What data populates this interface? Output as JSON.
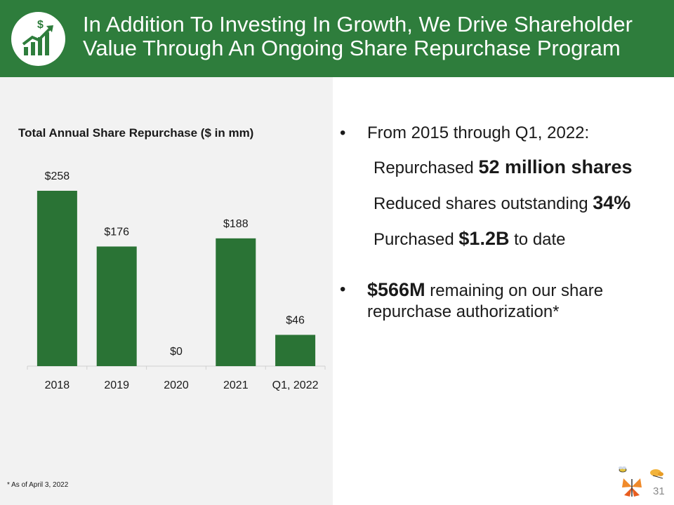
{
  "header": {
    "title_line1": "In Addition To Investing In Growth, We Drive Shareholder",
    "title_line2": "Value Through An Ongoing Share Repurchase Program",
    "logo_icon": "growth-chart-dollar-icon",
    "bg_color": "#2e7d3c"
  },
  "chart_data": {
    "type": "bar",
    "title": "Total Annual Share Repurchase ($ in mm)",
    "categories": [
      "2018",
      "2019",
      "2020",
      "2021",
      "Q1, 2022"
    ],
    "values": [
      258,
      176,
      0,
      188,
      46
    ],
    "data_labels": [
      "$258",
      "$176",
      "$0",
      "$188",
      "$46"
    ],
    "xlabel": "",
    "ylabel": "",
    "ylim": [
      0,
      258
    ],
    "grid": false,
    "bar_color": "#2a7335"
  },
  "bullets": {
    "b1_dot": "•",
    "b1_text": "From 2015 through Q1, 2022:",
    "s1_pre": "Repurchased ",
    "s1_bold": "52 million shares",
    "s2_pre": "Reduced shares outstanding ",
    "s2_bold": "34%",
    "s3_pre": "Purchased ",
    "s3_bold": "$1.2B",
    "s3_post": " to date",
    "b2_dot": "•",
    "b2_bold": "$566M",
    "b2_line1": " remaining on our share",
    "b2_line2": "repurchase authorization*"
  },
  "footnote": "* As of April 3, 2022",
  "page_number": "31",
  "decorations": [
    "bee-icon",
    "butterfly-icon",
    "moth-icon"
  ]
}
